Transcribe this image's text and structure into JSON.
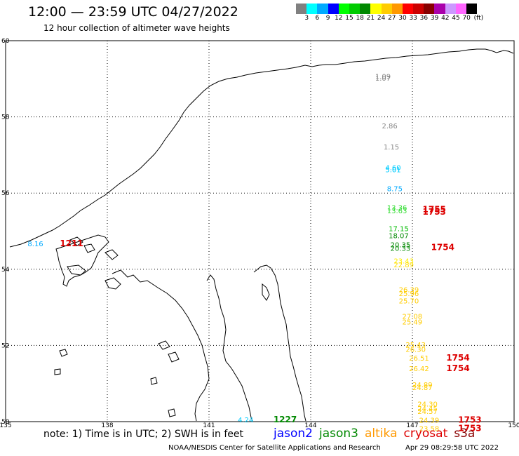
{
  "header": {
    "title": "12:00 — 23:59 UTC 04/27/2022",
    "subtitle": "12 hour collection of altimeter wave heights"
  },
  "legend": {
    "unit": "(ft)",
    "ticks": [
      "3",
      "6",
      "9",
      "12",
      "15",
      "18",
      "21",
      "24",
      "27",
      "30",
      "33",
      "36",
      "39",
      "42",
      "45",
      "70"
    ],
    "colors": [
      "#808080",
      "#00ffff",
      "#00aaff",
      "#0000ff",
      "#00ff00",
      "#00cc00",
      "#008800",
      "#ffff00",
      "#ffcc00",
      "#ff9900",
      "#ff0000",
      "#cc0000",
      "#880000",
      "#aa00aa",
      "#cc99ff",
      "#ff66ff",
      "#000000"
    ]
  },
  "map": {
    "lat_labels": [
      "60",
      "58",
      "56",
      "54",
      "52",
      "50"
    ],
    "lon_labels": [
      "135",
      "138",
      "141",
      "144",
      "147",
      "150"
    ],
    "lat_range": [
      50,
      60
    ],
    "lon_range": [
      135,
      150
    ]
  },
  "observations": [
    {
      "text": "1.09",
      "lon": 145.9,
      "lat": 59.0,
      "color": "#888888"
    },
    {
      "text": "1.07",
      "lon": 145.9,
      "lat": 58.95,
      "color": "#888888"
    },
    {
      "text": "2.86",
      "lon": 146.1,
      "lat": 57.7,
      "color": "#888888"
    },
    {
      "text": "1.15",
      "lon": 146.15,
      "lat": 57.15,
      "color": "#888888"
    },
    {
      "text": "4.60",
      "lon": 146.2,
      "lat": 56.6,
      "color": "#00ccff"
    },
    {
      "text": "5.01",
      "lon": 146.2,
      "lat": 56.55,
      "color": "#00ccff"
    },
    {
      "text": "8.75",
      "lon": 146.25,
      "lat": 56.05,
      "color": "#00aaff"
    },
    {
      "text": "13.36",
      "lon": 146.25,
      "lat": 55.55,
      "color": "#33dd33"
    },
    {
      "text": "13.63",
      "lon": 146.25,
      "lat": 55.47,
      "color": "#33dd33"
    },
    {
      "text": "1755",
      "lon": 147.3,
      "lat": 55.5,
      "color": "#dd0000",
      "big": true
    },
    {
      "text": "1753",
      "lon": 147.3,
      "lat": 55.43,
      "color": "#dd0000",
      "big": true
    },
    {
      "text": "17.15",
      "lon": 146.3,
      "lat": 55.0,
      "color": "#00bb00"
    },
    {
      "text": "18.07",
      "lon": 146.3,
      "lat": 54.82,
      "color": "#008800"
    },
    {
      "text": "20.35",
      "lon": 146.35,
      "lat": 54.58,
      "color": "#008800"
    },
    {
      "text": "20.33",
      "lon": 146.35,
      "lat": 54.48,
      "color": "#008800"
    },
    {
      "text": "1754",
      "lon": 147.55,
      "lat": 54.5,
      "color": "#dd0000",
      "big": true
    },
    {
      "text": "23.43",
      "lon": 146.45,
      "lat": 54.15,
      "color": "#ffee00"
    },
    {
      "text": "22.89",
      "lon": 146.45,
      "lat": 54.05,
      "color": "#ffdd00"
    },
    {
      "text": "26.39",
      "lon": 146.6,
      "lat": 53.4,
      "color": "#ffcc00"
    },
    {
      "text": "25.96",
      "lon": 146.6,
      "lat": 53.3,
      "color": "#ffcc00"
    },
    {
      "text": "25.70",
      "lon": 146.6,
      "lat": 53.1,
      "color": "#ffcc00"
    },
    {
      "text": "27.08",
      "lon": 146.7,
      "lat": 52.7,
      "color": "#ffcc00"
    },
    {
      "text": "25.49",
      "lon": 146.7,
      "lat": 52.55,
      "color": "#ffcc00"
    },
    {
      "text": "25.43",
      "lon": 146.8,
      "lat": 51.95,
      "color": "#ffcc00"
    },
    {
      "text": "26.30",
      "lon": 146.8,
      "lat": 51.83,
      "color": "#ffcc00"
    },
    {
      "text": "26.51",
      "lon": 146.9,
      "lat": 51.6,
      "color": "#ffcc00"
    },
    {
      "text": "1754",
      "lon": 148.0,
      "lat": 51.6,
      "color": "#dd0000",
      "big": true
    },
    {
      "text": "26.42",
      "lon": 146.9,
      "lat": 51.33,
      "color": "#ffcc00"
    },
    {
      "text": "1754",
      "lon": 148.0,
      "lat": 51.33,
      "color": "#dd0000",
      "big": true
    },
    {
      "text": "24.89",
      "lon": 147.0,
      "lat": 50.9,
      "color": "#ffcc00"
    },
    {
      "text": "24.87",
      "lon": 147.0,
      "lat": 50.83,
      "color": "#ffcc00"
    },
    {
      "text": "24.30",
      "lon": 147.15,
      "lat": 50.4,
      "color": "#ffcc00"
    },
    {
      "text": "24.45",
      "lon": 147.15,
      "lat": 50.28,
      "color": "#ffcc00"
    },
    {
      "text": "24.57",
      "lon": 147.15,
      "lat": 50.2,
      "color": "#ffcc00"
    },
    {
      "text": "24.39",
      "lon": 147.2,
      "lat": 49.97,
      "color": "#ffcc00"
    },
    {
      "text": "1753",
      "lon": 148.35,
      "lat": 49.97,
      "color": "#dd0000",
      "big": true
    },
    {
      "text": "23.58",
      "lon": 147.2,
      "lat": 49.75,
      "color": "#ffcc00"
    },
    {
      "text": "1753",
      "lon": 148.35,
      "lat": 49.75,
      "color": "#dd0000",
      "big": true
    },
    {
      "text": "8.16",
      "lon": 135.65,
      "lat": 54.6,
      "color": "#00aaff"
    },
    {
      "text": "1211",
      "lon": 136.6,
      "lat": 54.6,
      "color": "#dd0000",
      "big": true
    },
    {
      "text": "4.24",
      "lon": 141.85,
      "lat": 49.98,
      "color": "#00ccff"
    },
    {
      "text": "1227",
      "lon": 142.9,
      "lat": 49.98,
      "color": "#008800",
      "big": true
    }
  ],
  "footer": {
    "note": "note:  1) Time is in UTC;  2) SWH is in feet",
    "satellites": [
      {
        "label": "jason2",
        "color": "#0000ff"
      },
      {
        "label": "jason3",
        "color": "#008800"
      },
      {
        "label": "altika",
        "color": "#ff9900"
      },
      {
        "label": "cryosat",
        "color": "#dd0000"
      },
      {
        "label": "s3a",
        "color": "#880000"
      }
    ],
    "credit": "NOAA/NESDIS Center for Satellite Applications and Research",
    "timestamp": "Apr 29 08:29:58 UTC 2022"
  }
}
